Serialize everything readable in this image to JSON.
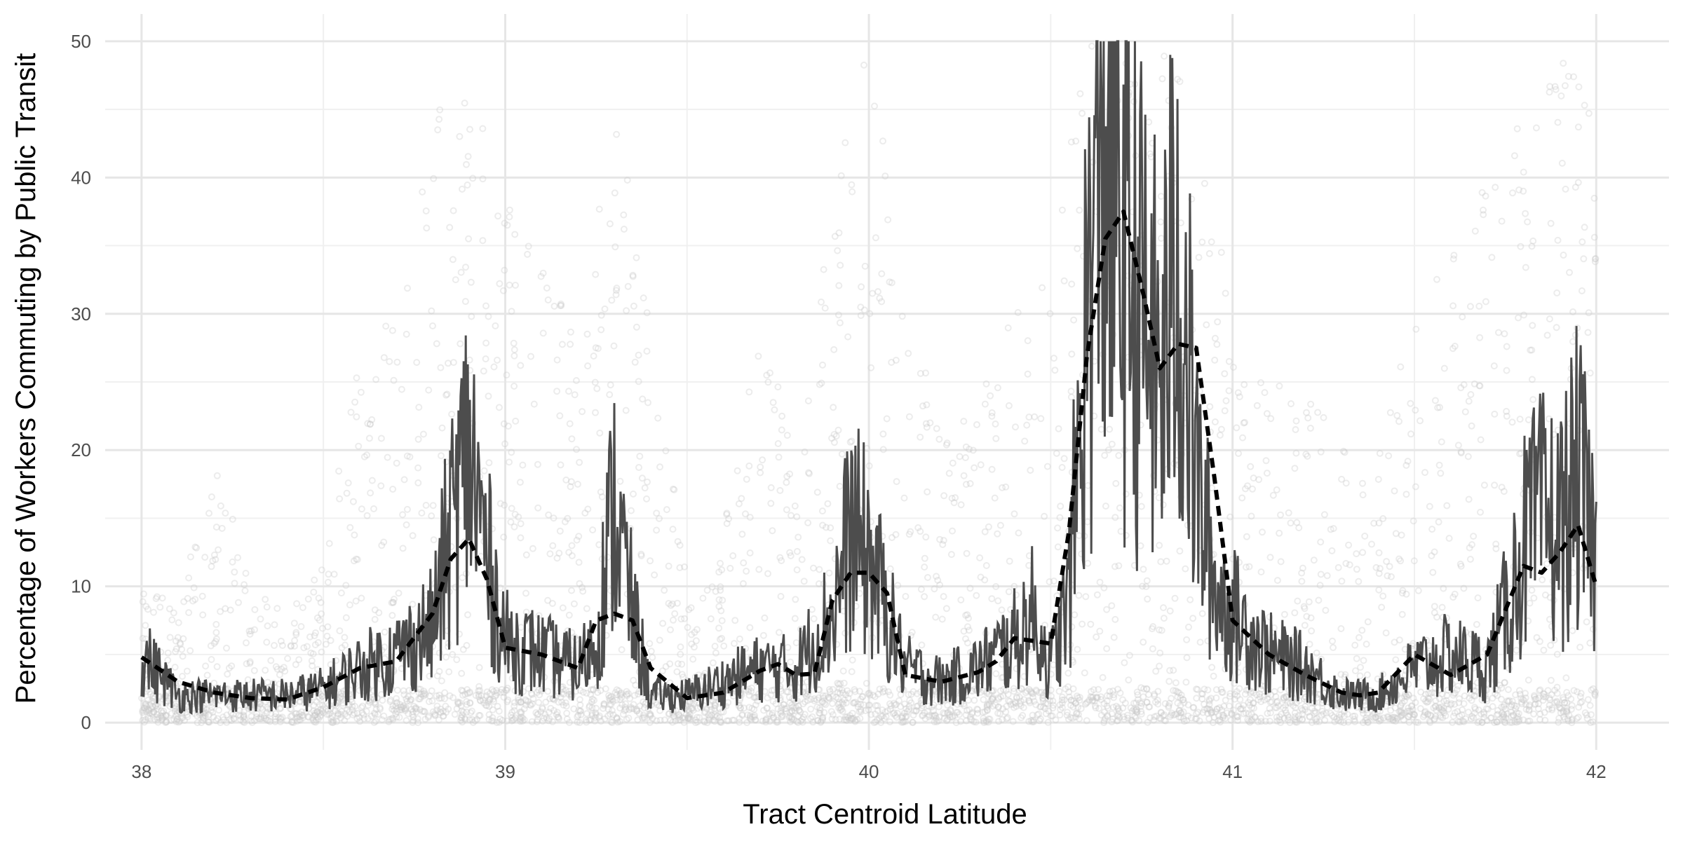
{
  "chart_data": {
    "type": "scatter",
    "title": "",
    "xlabel": "Tract Centroid Latitude",
    "ylabel": "Percentage of Workers Commuting by Public Transit",
    "xlim": [
      37.9,
      42.2
    ],
    "ylim": [
      -2,
      52
    ],
    "x_ticks": [
      38,
      39,
      40,
      41,
      42
    ],
    "y_ticks": [
      0,
      10,
      20,
      30,
      40,
      50
    ],
    "grid": true,
    "legend": "none",
    "series": [
      {
        "kind": "points",
        "color": "#c8c8c8",
        "density_profile": {
          "x": [
            38.0,
            38.1,
            38.2,
            38.3,
            38.4,
            38.5,
            38.6,
            38.7,
            38.8,
            38.9,
            39.0,
            39.1,
            39.2,
            39.3,
            39.4,
            39.5,
            39.6,
            39.7,
            39.8,
            39.9,
            40.0,
            40.1,
            40.2,
            40.3,
            40.4,
            40.5,
            40.6,
            40.7,
            40.8,
            40.9,
            41.0,
            41.1,
            41.2,
            41.3,
            41.4,
            41.5,
            41.6,
            41.7,
            41.8,
            41.9,
            42.0
          ],
          "upper_spread": [
            12,
            8,
            20,
            10,
            8,
            12,
            28,
            30,
            45,
            50,
            38,
            35,
            28,
            48,
            30,
            10,
            15,
            30,
            20,
            40,
            50,
            35,
            20,
            25,
            30,
            35,
            50,
            50,
            50,
            45,
            30,
            25,
            25,
            20,
            20,
            30,
            35,
            40,
            45,
            50,
            48
          ]
        }
      },
      {
        "kind": "line",
        "color": "#4d4d4d",
        "x": [
          38.0,
          38.1,
          38.2,
          38.3,
          38.4,
          38.5,
          38.6,
          38.7,
          38.8,
          38.85,
          38.9,
          38.95,
          39.0,
          39.1,
          39.2,
          39.25,
          39.3,
          39.35,
          39.4,
          39.5,
          39.6,
          39.7,
          39.8,
          39.9,
          39.95,
          40.0,
          40.05,
          40.1,
          40.2,
          40.3,
          40.4,
          40.45,
          40.5,
          40.55,
          40.6,
          40.65,
          40.7,
          40.75,
          40.8,
          40.85,
          40.9,
          40.95,
          41.0,
          41.1,
          41.2,
          41.3,
          41.4,
          41.5,
          41.6,
          41.7,
          41.75,
          41.8,
          41.85,
          41.9,
          41.95,
          42.0
        ],
        "y": [
          5,
          2,
          2,
          2,
          2,
          2.5,
          4,
          5,
          7,
          14,
          20,
          12,
          6,
          5,
          4,
          6,
          16,
          8,
          2,
          2,
          3,
          4,
          4,
          8,
          14,
          12,
          8,
          4,
          3,
          4,
          6,
          8,
          4,
          9,
          30,
          44,
          35,
          30,
          25,
          35,
          18,
          10,
          8,
          5,
          4,
          2,
          2,
          4,
          5,
          4,
          8,
          13,
          15,
          14,
          18,
          12
        ]
      },
      {
        "kind": "smooth",
        "color": "#000000",
        "dashed": true,
        "x": [
          38.0,
          38.1,
          38.2,
          38.3,
          38.4,
          38.5,
          38.6,
          38.7,
          38.8,
          38.85,
          38.9,
          38.95,
          39.0,
          39.1,
          39.2,
          39.25,
          39.3,
          39.35,
          39.4,
          39.5,
          39.6,
          39.7,
          39.75,
          39.8,
          39.85,
          39.9,
          39.95,
          40.0,
          40.05,
          40.1,
          40.2,
          40.3,
          40.35,
          40.4,
          40.45,
          40.5,
          40.55,
          40.6,
          40.65,
          40.7,
          40.75,
          40.8,
          40.85,
          40.9,
          40.95,
          41.0,
          41.1,
          41.2,
          41.3,
          41.35,
          41.4,
          41.5,
          41.6,
          41.7,
          41.8,
          41.85,
          41.9,
          41.95,
          42.0
        ],
        "y": [
          4.8,
          3.0,
          2.2,
          1.8,
          1.7,
          2.6,
          4.0,
          4.5,
          8.0,
          12.0,
          13.5,
          10.5,
          5.5,
          5.0,
          4.0,
          7.5,
          8.0,
          7.5,
          4.0,
          1.8,
          2.2,
          3.8,
          4.3,
          3.5,
          3.6,
          9.0,
          11.0,
          11.0,
          9.5,
          3.5,
          3.0,
          3.7,
          4.5,
          6.2,
          6.0,
          5.8,
          14.0,
          27.0,
          35.5,
          37.5,
          32.0,
          26.0,
          27.8,
          27.5,
          18.0,
          7.5,
          5.0,
          3.5,
          2.2,
          2.0,
          2.2,
          5.0,
          3.5,
          5.0,
          11.5,
          11.0,
          12.5,
          14.5,
          10.0
        ]
      }
    ]
  }
}
